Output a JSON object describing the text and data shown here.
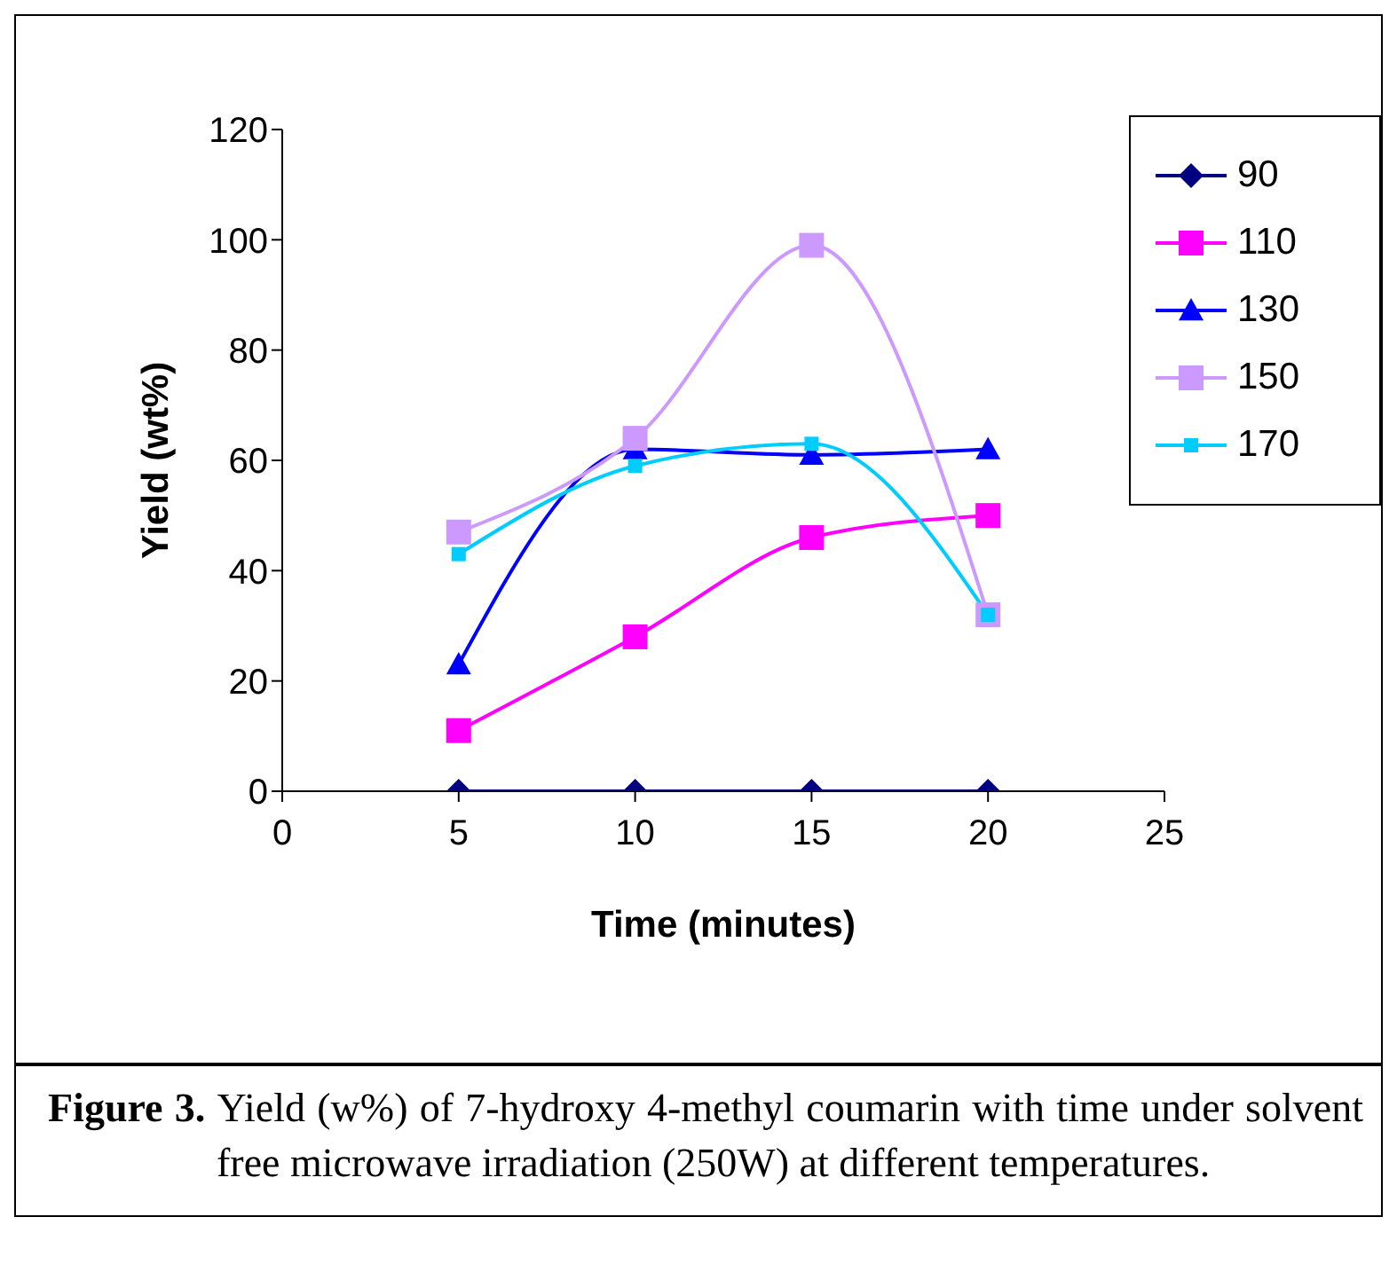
{
  "chart_data": {
    "type": "line",
    "xlabel": "Time (minutes)",
    "ylabel": "Yield (wt%)",
    "x": [
      5,
      10,
      15,
      20
    ],
    "series": [
      {
        "name": "90",
        "color": "#000080",
        "marker": "diamond",
        "values": [
          0,
          0,
          0,
          0
        ]
      },
      {
        "name": "110",
        "color": "#ff00ff",
        "marker": "square",
        "values": [
          11,
          28,
          46,
          50
        ]
      },
      {
        "name": "130",
        "color": "#0000ff",
        "marker": "triangle",
        "values": [
          23,
          62,
          61,
          62
        ]
      },
      {
        "name": "150",
        "color": "#cc99ff",
        "marker": "square",
        "values": [
          47,
          64,
          99,
          32
        ]
      },
      {
        "name": "170",
        "color": "#00ccff",
        "marker": "square",
        "values": [
          43,
          59,
          63,
          32
        ]
      }
    ],
    "xlim": [
      0,
      25
    ],
    "xticks": [
      0,
      5,
      10,
      15,
      20,
      25
    ],
    "ylim": [
      0,
      120
    ],
    "yticks": [
      0,
      20,
      40,
      60,
      80,
      100,
      120
    ],
    "grid": false,
    "legend": "top right",
    "annotations": [
      "Figure 3.",
      "Yield (w%) of 7-hydroxy 4-methyl coumarin with time under solvent free microwave irradiation (250W) at different temperatures."
    ]
  }
}
